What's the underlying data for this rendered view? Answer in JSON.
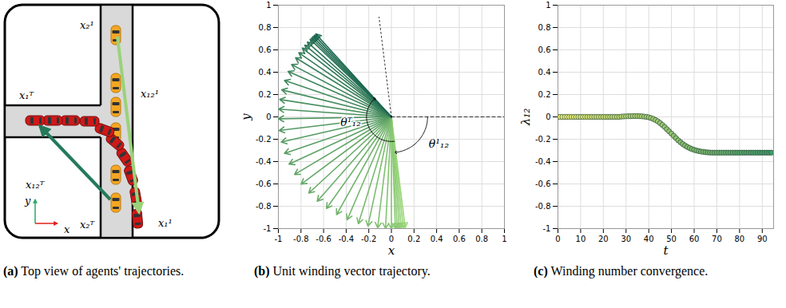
{
  "panel_a": {
    "caption_label": "(a)",
    "caption": "Top view of agents' trajectories.",
    "point_labels": [
      "x₂¹",
      "x₁ᵀ",
      "x₁₂¹",
      "x₁₂ᵀ",
      "x₂ᵀ",
      "x₁¹"
    ],
    "axis_labels": {
      "x": "x",
      "y": "y"
    }
  },
  "chart_data": [
    {
      "type": "quiver",
      "caption_label": "(b)",
      "caption": "Unit winding vector trajectory.",
      "x_label": "x",
      "y_label": "y",
      "u": [
        0.122,
        0.105,
        0.087,
        0.07,
        0.052,
        0.035,
        0,
        -0.052,
        -0.122,
        -0.208,
        -0.292,
        -0.391,
        -0.485,
        -0.574,
        -0.656,
        -0.731,
        -0.799,
        -0.857,
        -0.906,
        -0.946,
        -0.974,
        -0.993,
        -1.0,
        -0.998,
        -0.988,
        -0.97,
        -0.946,
        -0.914,
        -0.883,
        -0.848,
        -0.819,
        -0.788,
        -0.766,
        -0.743,
        -0.719,
        -0.707,
        -0.695,
        -0.682,
        -0.669
      ],
      "v": [
        -0.993,
        -0.995,
        -0.996,
        -0.998,
        -0.999,
        -0.999,
        -1,
        -0.999,
        -0.993,
        -0.978,
        -0.956,
        -0.921,
        -0.875,
        -0.819,
        -0.755,
        -0.682,
        -0.602,
        -0.515,
        -0.423,
        -0.326,
        -0.225,
        -0.122,
        -0.017,
        0.07,
        0.156,
        0.242,
        0.326,
        0.407,
        0.469,
        0.53,
        0.574,
        0.616,
        0.643,
        0.669,
        0.695,
        0.707,
        0.719,
        0.731,
        0.743
      ],
      "annotations": [
        "θ¹₁₂",
        "θᵀ₁₂"
      ],
      "xlim": [
        -1,
        1
      ],
      "ylim": [
        -1,
        1
      ],
      "xticks": [
        -1,
        -0.8,
        -0.6,
        -0.4,
        -0.2,
        0,
        0.2,
        0.4,
        0.6,
        0.8,
        1
      ],
      "yticks": [
        -1,
        -0.8,
        -0.6,
        -0.4,
        -0.2,
        0,
        0.2,
        0.4,
        0.6,
        0.8,
        1
      ],
      "grid": true
    },
    {
      "type": "scatter",
      "caption_label": "(c)",
      "caption": "Winding number convergence.",
      "x_label": "t",
      "y_label": "λ₁₂",
      "marker": "circle",
      "x": [
        0,
        1,
        2,
        3,
        4,
        5,
        6,
        7,
        8,
        9,
        10,
        11,
        12,
        13,
        14,
        15,
        16,
        17,
        18,
        19,
        20,
        21,
        22,
        23,
        24,
        25,
        26,
        27,
        28,
        29,
        30,
        31,
        32,
        33,
        34,
        35,
        36,
        37,
        38,
        39,
        40,
        41,
        42,
        43,
        44,
        45,
        46,
        47,
        48,
        49,
        50,
        51,
        52,
        53,
        54,
        55,
        56,
        57,
        58,
        59,
        60,
        61,
        62,
        63,
        64,
        65,
        66,
        67,
        68,
        69,
        70,
        71,
        72,
        73,
        74,
        75,
        76,
        77,
        78,
        79,
        80,
        81,
        82,
        83,
        84,
        85,
        86,
        87,
        88,
        89,
        90,
        91,
        92,
        93,
        94
      ],
      "values": [
        0,
        0,
        0,
        0,
        0,
        0,
        0,
        0,
        0,
        0,
        0,
        0,
        0,
        0,
        0,
        0,
        0,
        0,
        0,
        0,
        0,
        0,
        0,
        0,
        0,
        0,
        0,
        0,
        0.003,
        0.004,
        0.005,
        0.006,
        0.006,
        0.007,
        0.007,
        0.007,
        0.006,
        0.005,
        0.003,
        0,
        -0.004,
        -0.01,
        -0.018,
        -0.028,
        -0.04,
        -0.055,
        -0.072,
        -0.09,
        -0.11,
        -0.13,
        -0.15,
        -0.17,
        -0.19,
        -0.21,
        -0.227,
        -0.243,
        -0.257,
        -0.269,
        -0.279,
        -0.288,
        -0.295,
        -0.301,
        -0.306,
        -0.31,
        -0.313,
        -0.316,
        -0.318,
        -0.319,
        -0.32,
        -0.32,
        -0.32,
        -0.32,
        -0.32,
        -0.32,
        -0.32,
        -0.32,
        -0.32,
        -0.32,
        -0.32,
        -0.32,
        -0.32,
        -0.32,
        -0.32,
        -0.32,
        -0.32,
        -0.32,
        -0.32,
        -0.32,
        -0.32,
        -0.32,
        -0.32,
        -0.32,
        -0.32,
        -0.32,
        -0.32
      ],
      "xlim": [
        0,
        95
      ],
      "ylim": [
        -1,
        1
      ],
      "xticks": [
        0,
        10,
        20,
        30,
        40,
        50,
        60,
        70,
        80,
        90
      ],
      "yticks": [
        -1,
        -0.8,
        -0.6,
        -0.4,
        -0.2,
        0,
        0.2,
        0.4,
        0.6,
        0.8,
        1
      ],
      "grid": true
    }
  ]
}
